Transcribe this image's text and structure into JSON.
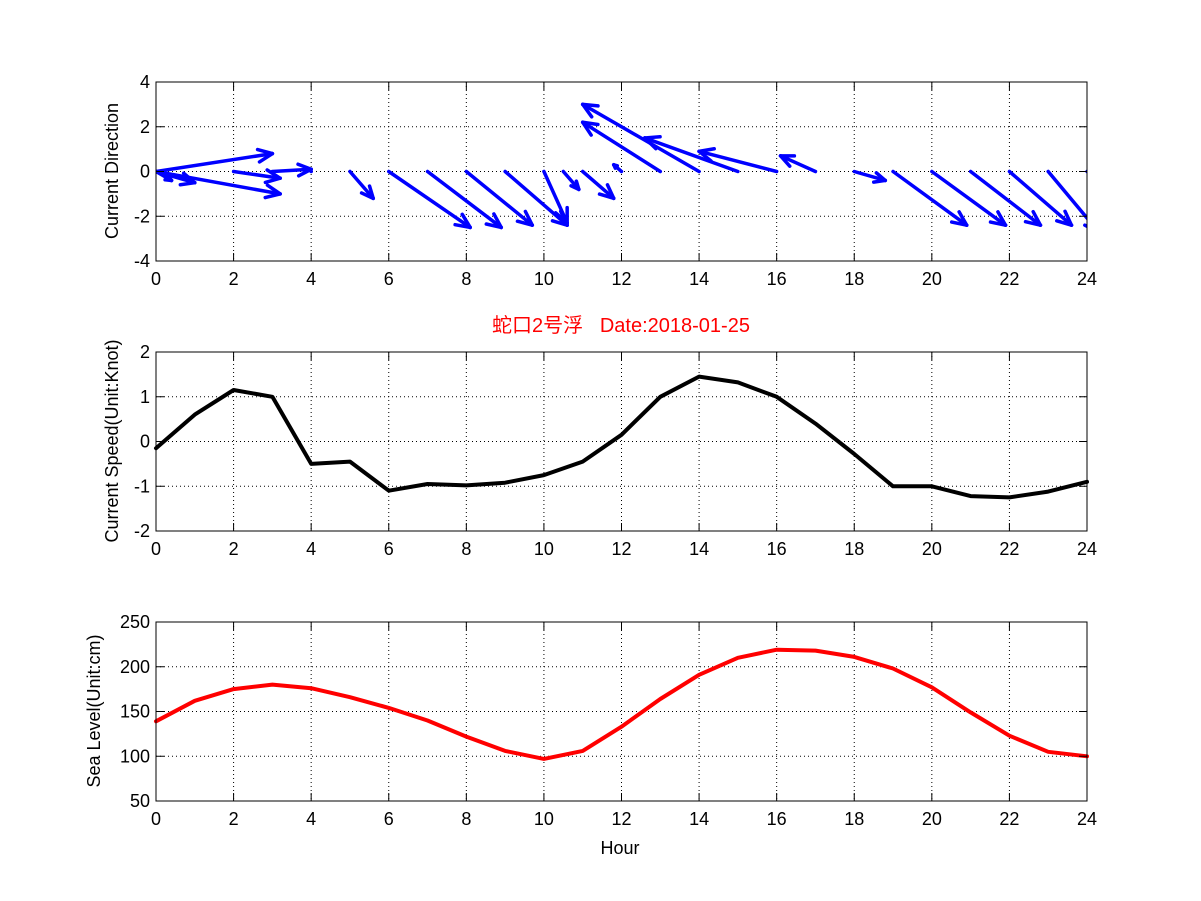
{
  "chart_data": [
    {
      "type": "quiver",
      "ylabel": "Current Direction",
      "xlabel": "",
      "xlim": [
        0,
        24
      ],
      "ylim": [
        -4,
        4
      ],
      "xticks": [
        0,
        2,
        4,
        6,
        8,
        10,
        12,
        14,
        16,
        18,
        20,
        22,
        24
      ],
      "yticks": [
        -4,
        -2,
        0,
        2,
        4
      ],
      "grid": true,
      "color": "#0000ff",
      "vectors": [
        {
          "x": 0,
          "u": 0.4,
          "v": -0.4
        },
        {
          "x": 0,
          "u": 1.0,
          "v": -0.5
        },
        {
          "x": 0,
          "u": 3.0,
          "v": 0.8
        },
        {
          "x": 0,
          "u": 3.2,
          "v": -1.0
        },
        {
          "x": 2,
          "u": 1.2,
          "v": -0.3
        },
        {
          "x": 3,
          "u": 1.0,
          "v": 0.1
        },
        {
          "x": 4,
          "u": 0.0,
          "v": 0.0
        },
        {
          "x": 5,
          "u": 0.6,
          "v": -1.2
        },
        {
          "x": 6,
          "u": 2.1,
          "v": -2.5
        },
        {
          "x": 7,
          "u": 1.9,
          "v": -2.5
        },
        {
          "x": 8,
          "u": 1.7,
          "v": -2.4
        },
        {
          "x": 9,
          "u": 1.6,
          "v": -2.4
        },
        {
          "x": 10,
          "u": 0.6,
          "v": -2.3
        },
        {
          "x": 10.5,
          "u": 0.4,
          "v": -0.8
        },
        {
          "x": 11,
          "u": 0.8,
          "v": -1.2
        },
        {
          "x": 12,
          "u": -0.2,
          "v": 0.3
        },
        {
          "x": 13,
          "u": -2.0,
          "v": 2.2
        },
        {
          "x": 14,
          "u": -3.0,
          "v": 3.0
        },
        {
          "x": 15,
          "u": -2.4,
          "v": 1.5
        },
        {
          "x": 16,
          "u": -2.0,
          "v": 0.9
        },
        {
          "x": 17,
          "u": -0.9,
          "v": 0.7
        },
        {
          "x": 18,
          "u": 0.8,
          "v": -0.4
        },
        {
          "x": 19,
          "u": 1.9,
          "v": -2.4
        },
        {
          "x": 20,
          "u": 1.9,
          "v": -2.4
        },
        {
          "x": 21,
          "u": 1.8,
          "v": -2.4
        },
        {
          "x": 22,
          "u": 1.6,
          "v": -2.4
        },
        {
          "x": 23,
          "u": 1.3,
          "v": -2.7
        },
        {
          "x": 24,
          "u": 1.3,
          "v": -2.0
        }
      ]
    },
    {
      "type": "line",
      "title": "蛇口2号浮   Date:2018-01-25",
      "ylabel": "Current Speed(Unit:Knot)",
      "xlabel": "",
      "xlim": [
        0,
        24
      ],
      "ylim": [
        -2,
        2
      ],
      "xticks": [
        0,
        2,
        4,
        6,
        8,
        10,
        12,
        14,
        16,
        18,
        20,
        22,
        24
      ],
      "yticks": [
        -2,
        -1,
        0,
        1,
        2
      ],
      "grid": true,
      "color": "#000000",
      "x": [
        0,
        1,
        2,
        3,
        4,
        5,
        6,
        7,
        8,
        9,
        10,
        11,
        12,
        13,
        14,
        15,
        16,
        17,
        18,
        19,
        20,
        21,
        22,
        23,
        24
      ],
      "y": [
        -0.15,
        0.6,
        1.15,
        1.0,
        -0.5,
        -0.45,
        -1.1,
        -0.95,
        -0.98,
        -0.92,
        -0.75,
        -0.45,
        0.15,
        1.0,
        1.45,
        1.32,
        1.0,
        0.4,
        -0.28,
        -1.0,
        -1.0,
        -1.22,
        -1.25,
        -1.12,
        -0.9
      ]
    },
    {
      "type": "line",
      "ylabel": "Sea Level(Unit:cm)",
      "xlabel": "Hour",
      "xlim": [
        0,
        24
      ],
      "ylim": [
        50,
        250
      ],
      "xticks": [
        0,
        2,
        4,
        6,
        8,
        10,
        12,
        14,
        16,
        18,
        20,
        22,
        24
      ],
      "yticks": [
        50,
        100,
        150,
        200,
        250
      ],
      "grid": true,
      "color": "#ff0000",
      "x": [
        0,
        1,
        2,
        3,
        4,
        5,
        6,
        7,
        8,
        9,
        10,
        11,
        12,
        13,
        14,
        15,
        16,
        17,
        18,
        19,
        20,
        21,
        22,
        23,
        24
      ],
      "y": [
        139,
        162,
        175,
        180,
        176,
        166,
        154,
        140,
        122,
        106,
        97,
        106,
        133,
        164,
        191,
        210,
        219,
        218,
        211,
        198,
        177,
        149,
        123,
        105,
        100
      ]
    }
  ]
}
